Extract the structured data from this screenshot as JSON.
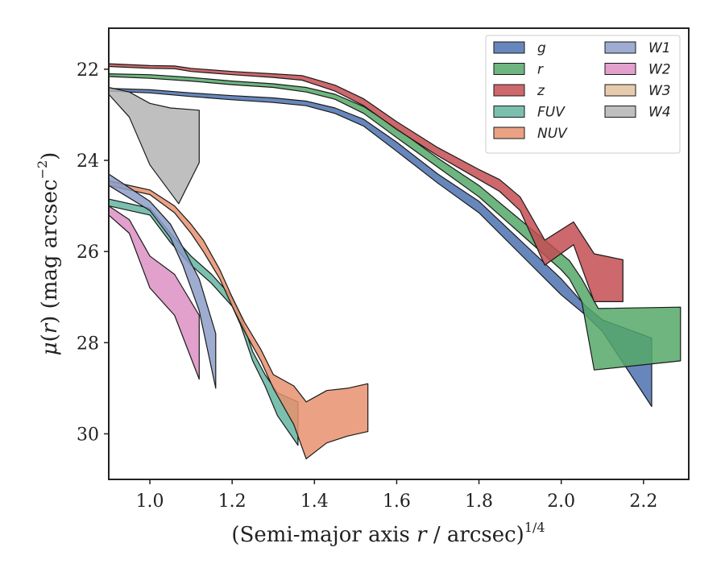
{
  "chart_data": {
    "type": "area",
    "xlabel": "(Semi-major axis r / arcsec)^(1/4)",
    "ylabel": "μ(r) (mag arcsec^-2)",
    "xlim": [
      0.9,
      2.31
    ],
    "ylim": [
      31.0,
      21.1
    ],
    "y_inverted": true,
    "xticks": [
      1.0,
      1.2,
      1.4,
      1.6,
      1.8,
      2.0,
      2.2
    ],
    "xtick_labels": [
      "1.0",
      "1.2",
      "1.4",
      "1.6",
      "1.8",
      "2.0",
      "2.2"
    ],
    "yticks": [
      22,
      24,
      26,
      28,
      30
    ],
    "ytick_labels": [
      "22",
      "24",
      "26",
      "28",
      "30"
    ],
    "grid": false,
    "legend_position": "top-right",
    "legend_columns": 2,
    "series": [
      {
        "name": "g",
        "color": "#4c72b0",
        "upper": [
          [
            0.9,
            22.42
          ],
          [
            1.0,
            22.45
          ],
          [
            1.1,
            22.52
          ],
          [
            1.2,
            22.58
          ],
          [
            1.3,
            22.63
          ],
          [
            1.38,
            22.7
          ],
          [
            1.45,
            22.85
          ],
          [
            1.52,
            23.1
          ],
          [
            1.6,
            23.6
          ],
          [
            1.7,
            24.3
          ],
          [
            1.8,
            24.9
          ],
          [
            1.9,
            25.75
          ],
          [
            2.0,
            26.6
          ],
          [
            2.06,
            27.2
          ],
          [
            2.1,
            27.5
          ],
          [
            2.22,
            27.9
          ]
        ],
        "lower": [
          [
            0.9,
            22.48
          ],
          [
            1.0,
            22.52
          ],
          [
            1.1,
            22.6
          ],
          [
            1.2,
            22.67
          ],
          [
            1.3,
            22.73
          ],
          [
            1.38,
            22.8
          ],
          [
            1.45,
            22.97
          ],
          [
            1.52,
            23.25
          ],
          [
            1.6,
            23.8
          ],
          [
            1.7,
            24.5
          ],
          [
            1.8,
            25.15
          ],
          [
            1.9,
            26.05
          ],
          [
            2.0,
            26.95
          ],
          [
            2.06,
            27.4
          ],
          [
            2.1,
            27.75
          ],
          [
            2.22,
            29.4
          ]
        ]
      },
      {
        "name": "r",
        "color": "#55a868",
        "upper": [
          [
            0.9,
            22.1
          ],
          [
            1.0,
            22.12
          ],
          [
            1.1,
            22.18
          ],
          [
            1.2,
            22.26
          ],
          [
            1.3,
            22.32
          ],
          [
            1.38,
            22.4
          ],
          [
            1.45,
            22.55
          ],
          [
            1.52,
            22.82
          ],
          [
            1.6,
            23.3
          ],
          [
            1.7,
            23.95
          ],
          [
            1.8,
            24.55
          ],
          [
            1.9,
            25.3
          ],
          [
            2.0,
            26.05
          ],
          [
            2.02,
            26.2
          ],
          [
            2.05,
            26.6
          ],
          [
            2.09,
            27.25
          ],
          [
            2.29,
            27.22
          ]
        ],
        "lower": [
          [
            0.9,
            22.16
          ],
          [
            1.0,
            22.2
          ],
          [
            1.1,
            22.26
          ],
          [
            1.2,
            22.34
          ],
          [
            1.3,
            22.4
          ],
          [
            1.38,
            22.5
          ],
          [
            1.45,
            22.66
          ],
          [
            1.52,
            22.97
          ],
          [
            1.6,
            23.5
          ],
          [
            1.7,
            24.15
          ],
          [
            1.8,
            24.8
          ],
          [
            1.9,
            25.6
          ],
          [
            2.0,
            26.4
          ],
          [
            2.02,
            26.6
          ],
          [
            2.05,
            27.1
          ],
          [
            2.08,
            28.6
          ],
          [
            2.29,
            28.4
          ]
        ]
      },
      {
        "name": "z",
        "color": "#c44e52",
        "upper": [
          [
            0.9,
            21.88
          ],
          [
            1.0,
            21.92
          ],
          [
            1.06,
            21.93
          ],
          [
            1.1,
            21.98
          ],
          [
            1.2,
            22.05
          ],
          [
            1.3,
            22.1
          ],
          [
            1.37,
            22.14
          ],
          [
            1.45,
            22.35
          ],
          [
            1.52,
            22.65
          ],
          [
            1.6,
            23.15
          ],
          [
            1.7,
            23.72
          ],
          [
            1.8,
            24.2
          ],
          [
            1.85,
            24.42
          ],
          [
            1.9,
            24.8
          ],
          [
            1.96,
            25.75
          ],
          [
            2.03,
            25.35
          ],
          [
            2.08,
            26.05
          ],
          [
            2.15,
            26.18
          ]
        ],
        "lower": [
          [
            0.9,
            21.94
          ],
          [
            1.0,
            21.98
          ],
          [
            1.06,
            21.99
          ],
          [
            1.1,
            22.05
          ],
          [
            1.2,
            22.12
          ],
          [
            1.3,
            22.18
          ],
          [
            1.37,
            22.24
          ],
          [
            1.45,
            22.48
          ],
          [
            1.52,
            22.8
          ],
          [
            1.6,
            23.32
          ],
          [
            1.7,
            23.9
          ],
          [
            1.8,
            24.42
          ],
          [
            1.85,
            24.68
          ],
          [
            1.9,
            25.1
          ],
          [
            1.96,
            26.3
          ],
          [
            2.03,
            25.85
          ],
          [
            2.08,
            27.1
          ],
          [
            2.15,
            27.1
          ]
        ]
      },
      {
        "name": "FUV",
        "color": "#64b5a0",
        "upper": [
          [
            0.9,
            24.85
          ],
          [
            1.0,
            25.05
          ],
          [
            1.05,
            25.6
          ],
          [
            1.1,
            26.1
          ],
          [
            1.15,
            26.5
          ],
          [
            1.2,
            27.0
          ],
          [
            1.22,
            27.4
          ],
          [
            1.25,
            28.2
          ],
          [
            1.28,
            28.7
          ],
          [
            1.31,
            29.1
          ],
          [
            1.36,
            29.3
          ]
        ],
        "lower": [
          [
            0.9,
            25.0
          ],
          [
            1.0,
            25.2
          ],
          [
            1.05,
            25.8
          ],
          [
            1.1,
            26.3
          ],
          [
            1.15,
            26.7
          ],
          [
            1.2,
            27.2
          ],
          [
            1.22,
            27.6
          ],
          [
            1.25,
            28.4
          ],
          [
            1.28,
            28.95
          ],
          [
            1.31,
            29.6
          ],
          [
            1.36,
            30.25
          ]
        ]
      },
      {
        "name": "NUV",
        "color": "#e8906e",
        "upper": [
          [
            0.9,
            24.45
          ],
          [
            1.0,
            24.65
          ],
          [
            1.06,
            25.0
          ],
          [
            1.1,
            25.4
          ],
          [
            1.13,
            25.75
          ],
          [
            1.17,
            26.4
          ],
          [
            1.2,
            27.0
          ],
          [
            1.23,
            27.55
          ],
          [
            1.27,
            28.15
          ],
          [
            1.3,
            28.7
          ],
          [
            1.35,
            28.95
          ],
          [
            1.38,
            29.3
          ],
          [
            1.43,
            29.05
          ],
          [
            1.48,
            29.0
          ],
          [
            1.53,
            28.9
          ]
        ],
        "lower": [
          [
            0.9,
            24.55
          ],
          [
            1.0,
            24.75
          ],
          [
            1.06,
            25.15
          ],
          [
            1.1,
            25.6
          ],
          [
            1.13,
            26.0
          ],
          [
            1.17,
            26.6
          ],
          [
            1.2,
            27.2
          ],
          [
            1.23,
            27.75
          ],
          [
            1.27,
            28.4
          ],
          [
            1.3,
            29.0
          ],
          [
            1.35,
            29.8
          ],
          [
            1.38,
            30.55
          ],
          [
            1.43,
            30.2
          ],
          [
            1.48,
            30.05
          ],
          [
            1.53,
            29.95
          ]
        ]
      },
      {
        "name": "W1",
        "color": "#8c9ec8",
        "upper": [
          [
            0.9,
            24.3
          ],
          [
            1.0,
            24.9
          ],
          [
            1.05,
            25.4
          ],
          [
            1.08,
            25.9
          ],
          [
            1.12,
            26.6
          ],
          [
            1.16,
            27.8
          ]
        ],
        "lower": [
          [
            0.9,
            24.55
          ],
          [
            1.0,
            25.1
          ],
          [
            1.05,
            25.7
          ],
          [
            1.08,
            26.3
          ],
          [
            1.12,
            27.3
          ],
          [
            1.16,
            29.0
          ]
        ]
      },
      {
        "name": "W2",
        "color": "#dd8fc3",
        "upper": [
          [
            0.9,
            25.0
          ],
          [
            0.95,
            25.3
          ],
          [
            1.0,
            26.1
          ],
          [
            1.06,
            26.5
          ],
          [
            1.12,
            27.4
          ]
        ],
        "lower": [
          [
            0.9,
            25.2
          ],
          [
            0.95,
            25.6
          ],
          [
            1.0,
            26.8
          ],
          [
            1.06,
            27.4
          ],
          [
            1.12,
            28.8
          ]
        ]
      },
      {
        "name": "W3",
        "color": "#e2c29f",
        "upper": [],
        "lower": []
      },
      {
        "name": "W4",
        "color": "#b4b4b4",
        "upper": [
          [
            0.9,
            22.4
          ],
          [
            0.95,
            22.5
          ],
          [
            1.0,
            22.75
          ],
          [
            1.05,
            22.85
          ],
          [
            1.12,
            22.9
          ]
        ],
        "lower": [
          [
            0.9,
            22.55
          ],
          [
            0.95,
            23.05
          ],
          [
            1.0,
            24.1
          ],
          [
            1.07,
            24.95
          ],
          [
            1.12,
            24.05
          ]
        ]
      }
    ]
  }
}
